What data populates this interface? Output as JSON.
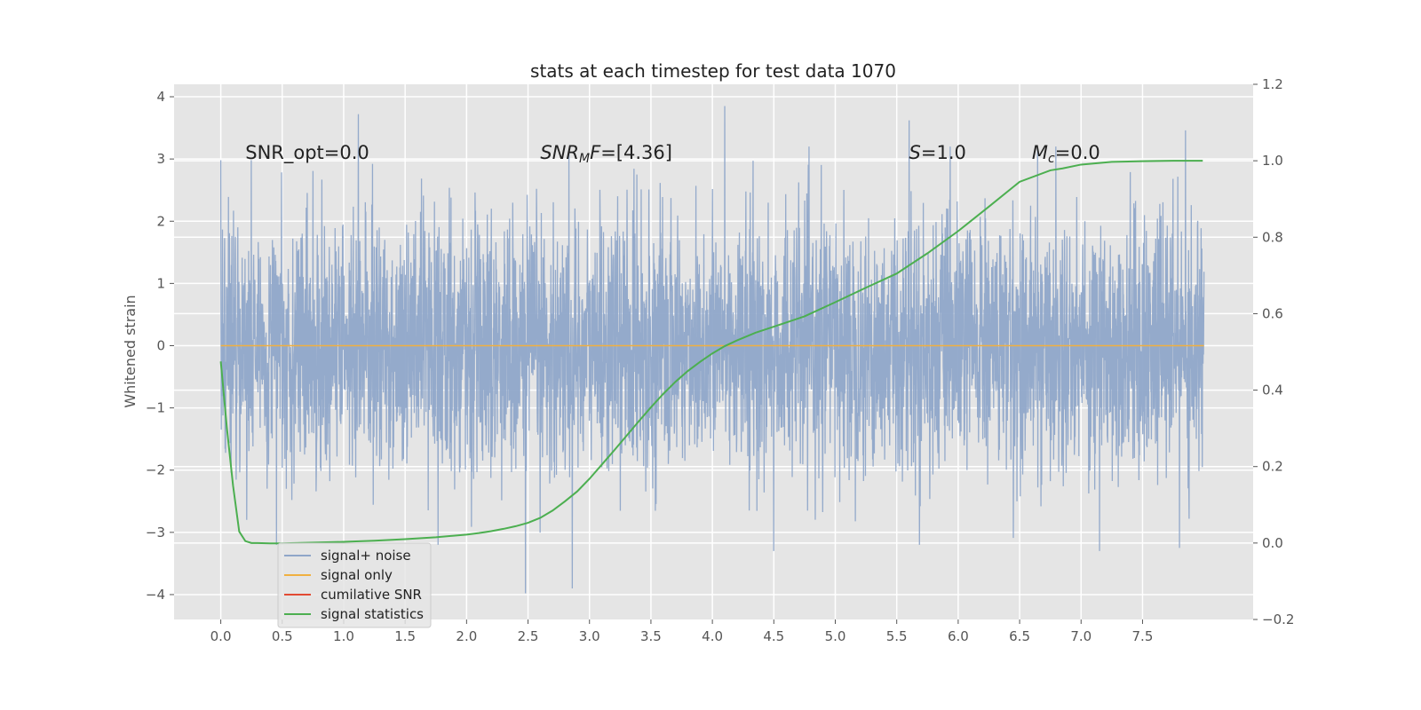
{
  "chart_data": {
    "type": "line",
    "title": "stats at each timestep for test data 1070",
    "ylabel": "Whitened strain",
    "xlim": [
      -0.38,
      8.4
    ],
    "ylim": [
      -4.4,
      4.2
    ],
    "y2lim": [
      -0.2,
      1.2
    ],
    "x_ticks": [
      0.0,
      0.5,
      1.0,
      1.5,
      2.0,
      2.5,
      3.0,
      3.5,
      4.0,
      4.5,
      5.0,
      5.5,
      6.0,
      6.5,
      7.0,
      7.5
    ],
    "x_tick_labels": [
      "0.0",
      "0.5",
      "1.0",
      "1.5",
      "2.0",
      "2.5",
      "3.0",
      "3.5",
      "4.0",
      "4.5",
      "5.0",
      "5.5",
      "6.0",
      "6.5",
      "7.0",
      "7.5"
    ],
    "y_ticks": [
      -4,
      -3,
      -2,
      -1,
      0,
      1,
      2,
      3,
      4
    ],
    "y_tick_labels": [
      "−4",
      "−3",
      "−2",
      "−1",
      "0",
      "1",
      "2",
      "3",
      "4"
    ],
    "y2_ticks": [
      -0.2,
      0.0,
      0.2,
      0.4,
      0.6,
      0.8,
      1.0,
      1.2
    ],
    "y2_tick_labels": [
      "−0.2",
      "0.0",
      "0.2",
      "0.4",
      "0.6",
      "0.8",
      "1.0",
      "1.2"
    ],
    "grid": true,
    "legend_placement": "lower-left",
    "annotations": [
      {
        "parts": [
          {
            "t": "SNR_opt=0.0",
            "style": "normal"
          }
        ],
        "x": 0.2,
        "y": 3.0
      },
      {
        "parts": [
          {
            "t": "SNR",
            "style": "italic"
          },
          {
            "t": "M",
            "style": "italic-sub"
          },
          {
            "t": "F",
            "style": "italic"
          },
          {
            "t": "=[4.36]",
            "style": "normal"
          }
        ],
        "x": 2.6,
        "y": 3.0
      },
      {
        "parts": [
          {
            "t": "S",
            "style": "italic"
          },
          {
            "t": "=1.0",
            "style": "normal"
          }
        ],
        "x": 5.6,
        "y": 3.0
      },
      {
        "parts": [
          {
            "t": "M",
            "style": "italic"
          },
          {
            "t": "c",
            "style": "italic-sub"
          },
          {
            "t": "=0.0",
            "style": "normal"
          }
        ],
        "x": 6.6,
        "y": 3.0
      }
    ],
    "series": [
      {
        "name": "signal+ noise",
        "axis": "left",
        "color": "#8fa6c9",
        "kind": "noise",
        "x_range": [
          0.0,
          8.0
        ],
        "num_points": 4096,
        "typical_amplitude": 1.0,
        "extremes": [
          {
            "x": 0.0,
            "y": 2.98
          },
          {
            "x": 1.12,
            "y": 3.72
          },
          {
            "x": 2.48,
            "y": -3.98
          },
          {
            "x": 2.86,
            "y": -3.9
          },
          {
            "x": 4.1,
            "y": 3.85
          },
          {
            "x": 4.5,
            "y": -3.3
          },
          {
            "x": 5.6,
            "y": 3.62
          },
          {
            "x": 7.15,
            "y": -3.3
          },
          {
            "x": 7.85,
            "y": 3.46
          },
          {
            "x": 7.8,
            "y": -3.25
          }
        ]
      },
      {
        "name": "signal only",
        "axis": "left",
        "color": "#f0b040",
        "x": [
          0.0,
          8.0
        ],
        "values": [
          0.0,
          0.0
        ]
      },
      {
        "name": "cumilative SNR",
        "axis": "left",
        "color": "#e24a33",
        "x": [],
        "values": []
      },
      {
        "name": "signal statistics",
        "axis": "right",
        "color": "#4caf50",
        "x": [
          0.0,
          0.05,
          0.1,
          0.15,
          0.2,
          0.25,
          0.3,
          0.4,
          0.5,
          0.75,
          1.0,
          1.25,
          1.5,
          1.75,
          2.0,
          2.1,
          2.2,
          2.3,
          2.4,
          2.5,
          2.6,
          2.7,
          2.8,
          2.9,
          3.0,
          3.1,
          3.2,
          3.3,
          3.4,
          3.5,
          3.6,
          3.7,
          3.8,
          3.9,
          4.0,
          4.1,
          4.2,
          4.35,
          4.5,
          4.75,
          5.0,
          5.25,
          5.5,
          5.75,
          6.0,
          6.25,
          6.5,
          6.75,
          6.85,
          7.0,
          7.25,
          7.5,
          7.75,
          7.99
        ],
        "values": [
          0.475,
          0.3,
          0.15,
          0.03,
          0.005,
          0.0,
          0.0,
          -0.001,
          -0.001,
          0.001,
          0.003,
          0.006,
          0.01,
          0.015,
          0.022,
          0.026,
          0.031,
          0.037,
          0.044,
          0.053,
          0.066,
          0.085,
          0.109,
          0.135,
          0.168,
          0.205,
          0.242,
          0.28,
          0.318,
          0.355,
          0.39,
          0.422,
          0.45,
          0.474,
          0.496,
          0.515,
          0.53,
          0.55,
          0.566,
          0.593,
          0.63,
          0.668,
          0.705,
          0.758,
          0.816,
          0.88,
          0.945,
          0.975,
          0.98,
          0.99,
          0.997,
          0.999,
          1.0,
          1.0
        ]
      }
    ]
  }
}
